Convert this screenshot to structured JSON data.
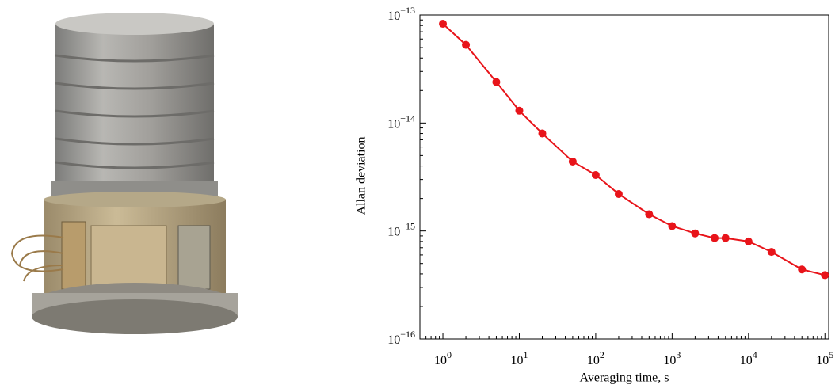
{
  "chart_data": {
    "type": "line",
    "xlabel": "Averaging time, s",
    "ylabel": "Allan deviation",
    "x": [
      1,
      2,
      5,
      10,
      20,
      50,
      100,
      200,
      500,
      1000,
      2000,
      3600,
      5000,
      10000,
      20000,
      50000,
      100000
    ],
    "series": [
      {
        "color": "#e8141a",
        "values": [
          8.3e-14,
          5.3e-14,
          2.4e-14,
          1.3e-14,
          8e-15,
          4.4e-15,
          3.3e-15,
          2.2e-15,
          1.43e-15,
          1.11e-15,
          9.5e-16,
          8.6e-16,
          8.6e-16,
          8e-16,
          6.4e-16,
          4.4e-16,
          3.9e-16
        ]
      }
    ],
    "xscale": "log",
    "yscale": "log",
    "minor_ticks": true,
    "xlim": [
      0.5,
      112000
    ],
    "ylim": [
      1e-16,
      1e-13
    ],
    "xticks": [
      {
        "value": 1,
        "label": "10^0"
      },
      {
        "value": 10,
        "label": "10^1"
      },
      {
        "value": 100,
        "label": "10^2"
      },
      {
        "value": 1000,
        "label": "10^3"
      },
      {
        "value": 10000,
        "label": "10^4"
      },
      {
        "value": 100000,
        "label": "10^5"
      }
    ],
    "yticks": [
      {
        "value": 1e-16,
        "label": "10^−16"
      },
      {
        "value": 1e-15,
        "label": "10^−15"
      },
      {
        "value": 1e-14,
        "label": "10^−14"
      },
      {
        "value": 1e-13,
        "label": "10^−13"
      }
    ]
  }
}
